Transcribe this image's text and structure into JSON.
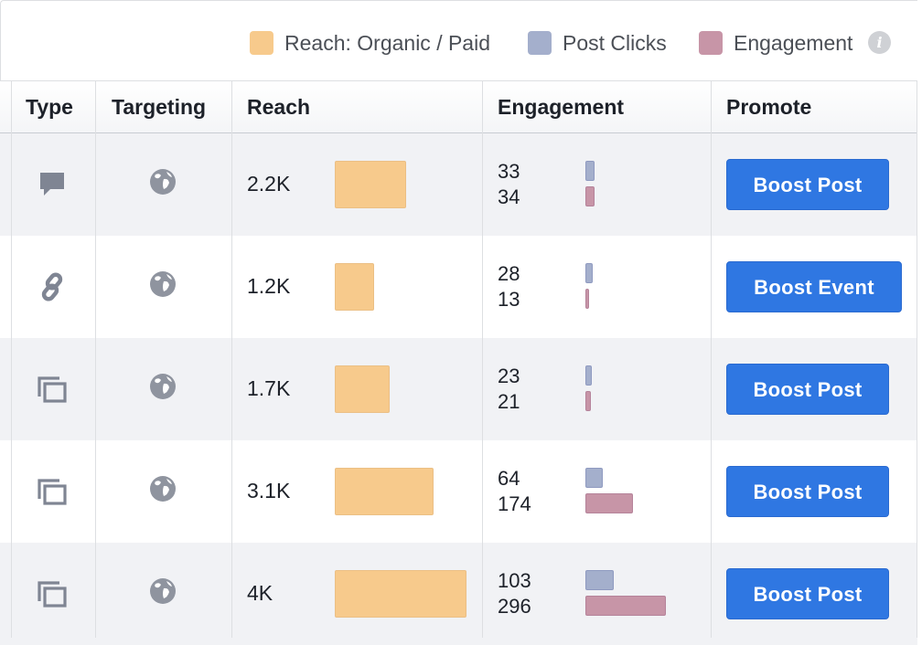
{
  "legend": {
    "items": [
      {
        "label": "Reach: Organic / Paid",
        "color": "#f7ca8c"
      },
      {
        "label": "Post Clicks",
        "color": "#a4afcc"
      },
      {
        "label": "Engagement",
        "color": "#c795a7"
      }
    ],
    "info_icon": "i"
  },
  "table": {
    "columns": [
      "Type",
      "Targeting",
      "Reach",
      "Engagement",
      "Promote"
    ],
    "rows": [
      {
        "type_icon": "comment-icon",
        "targeting_icon": "globe-icon",
        "reach": "2.2K",
        "reach_value": 2200,
        "post_clicks": "33",
        "engagement": "34",
        "promote": "Boost Post"
      },
      {
        "type_icon": "link-icon",
        "targeting_icon": "globe-icon",
        "reach": "1.2K",
        "reach_value": 1200,
        "post_clicks": "28",
        "engagement": "13",
        "promote": "Boost Event"
      },
      {
        "type_icon": "album-icon",
        "targeting_icon": "globe-icon",
        "reach": "1.7K",
        "reach_value": 1700,
        "post_clicks": "23",
        "engagement": "21",
        "promote": "Boost Post"
      },
      {
        "type_icon": "album-icon",
        "targeting_icon": "globe-icon",
        "reach": "3.1K",
        "reach_value": 3100,
        "post_clicks": "64",
        "engagement": "174",
        "promote": "Boost Post"
      },
      {
        "type_icon": "album-icon",
        "targeting_icon": "globe-icon",
        "reach": "4K",
        "reach_value": 4000,
        "post_clicks": "103",
        "engagement": "296",
        "promote": "Boost Post"
      }
    ]
  }
}
